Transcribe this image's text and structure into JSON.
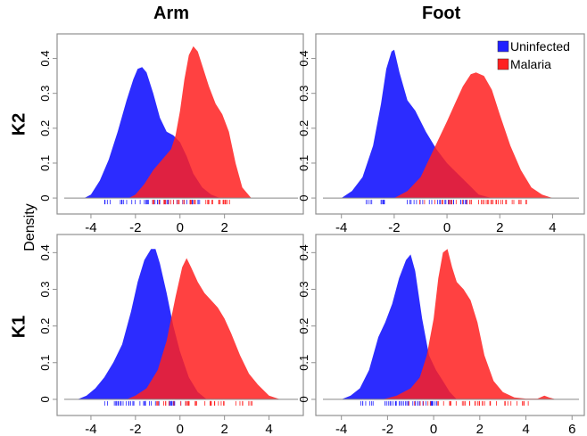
{
  "column_titles": [
    "Arm",
    "Foot"
  ],
  "row_labels": [
    "K2",
    "K1"
  ],
  "y_axis_title": "Density",
  "colors": {
    "uninfected": "#2121ff",
    "malaria": "#ff2020",
    "axis": "#909090"
  },
  "legend": {
    "placement": "top-right of Foot K2 panel",
    "entries": [
      "Uninfected",
      "Malaria"
    ]
  },
  "chart_data": [
    {
      "type": "area",
      "title": "Arm",
      "row": "K2",
      "xlim": [
        -5.2,
        5.3
      ],
      "ylim": [
        -0.01,
        0.45
      ],
      "xticks": [
        -4,
        -2,
        0,
        2
      ],
      "yticks": [
        0,
        0.1,
        0.2,
        0.3,
        0.4
      ],
      "series": [
        {
          "name": "Uninfected",
          "x": [
            -4.3,
            -4.0,
            -3.6,
            -3.2,
            -2.8,
            -2.4,
            -2.1,
            -1.9,
            -1.7,
            -1.5,
            -1.2,
            -0.9,
            -0.6,
            -0.3,
            0.0,
            0.3,
            0.6,
            1.0,
            1.4,
            1.8
          ],
          "y": [
            0.0,
            0.01,
            0.05,
            0.11,
            0.19,
            0.28,
            0.34,
            0.37,
            0.375,
            0.36,
            0.3,
            0.23,
            0.19,
            0.18,
            0.16,
            0.12,
            0.07,
            0.03,
            0.01,
            0.0
          ]
        },
        {
          "name": "Malaria",
          "x": [
            -2.3,
            -2.0,
            -1.6,
            -1.2,
            -0.8,
            -0.4,
            -0.2,
            0.0,
            0.2,
            0.4,
            0.6,
            0.8,
            1.0,
            1.3,
            1.6,
            1.9,
            2.2,
            2.5,
            2.8,
            3.2
          ],
          "y": [
            0.0,
            0.01,
            0.04,
            0.08,
            0.11,
            0.14,
            0.18,
            0.25,
            0.34,
            0.41,
            0.435,
            0.42,
            0.38,
            0.32,
            0.27,
            0.24,
            0.19,
            0.1,
            0.03,
            0.0
          ]
        }
      ]
    },
    {
      "type": "area",
      "title": "Foot",
      "row": "K2",
      "xlim": [
        -4.7,
        5.0
      ],
      "ylim": [
        -0.01,
        0.45
      ],
      "xticks": [
        -4,
        -2,
        0,
        2,
        4
      ],
      "yticks": [
        0,
        0.1,
        0.2,
        0.3,
        0.4
      ],
      "series": [
        {
          "name": "Uninfected",
          "x": [
            -4.0,
            -3.6,
            -3.2,
            -2.8,
            -2.5,
            -2.3,
            -2.1,
            -2.0,
            -1.8,
            -1.5,
            -1.2,
            -0.8,
            -0.4,
            0.0,
            0.4,
            0.8,
            1.2,
            1.7
          ],
          "y": [
            0.0,
            0.02,
            0.06,
            0.15,
            0.27,
            0.37,
            0.42,
            0.425,
            0.36,
            0.28,
            0.25,
            0.19,
            0.14,
            0.1,
            0.07,
            0.04,
            0.01,
            0.0
          ]
        },
        {
          "name": "Malaria",
          "x": [
            -2.0,
            -1.5,
            -1.0,
            -0.5,
            0.0,
            0.3,
            0.6,
            0.9,
            1.1,
            1.4,
            1.7,
            2.0,
            2.4,
            2.8,
            3.2,
            3.6,
            4.0
          ],
          "y": [
            0.0,
            0.02,
            0.06,
            0.14,
            0.22,
            0.27,
            0.32,
            0.355,
            0.36,
            0.35,
            0.31,
            0.24,
            0.15,
            0.08,
            0.03,
            0.01,
            0.0
          ]
        }
      ]
    },
    {
      "type": "area",
      "title": "Arm",
      "row": "K1",
      "xlim": [
        -5.2,
        5.3
      ],
      "ylim": [
        -0.01,
        0.43
      ],
      "xticks": [
        -4,
        -2,
        0,
        2,
        4
      ],
      "yticks": [
        0,
        0.1,
        0.2,
        0.3,
        0.4
      ],
      "series": [
        {
          "name": "Uninfected",
          "x": [
            -4.6,
            -4.2,
            -3.8,
            -3.4,
            -3.0,
            -2.6,
            -2.2,
            -1.9,
            -1.6,
            -1.3,
            -1.1,
            -0.9,
            -0.6,
            -0.3,
            0.0,
            0.4,
            0.8,
            1.2
          ],
          "y": [
            0.0,
            0.01,
            0.03,
            0.06,
            0.1,
            0.15,
            0.24,
            0.32,
            0.38,
            0.41,
            0.41,
            0.37,
            0.29,
            0.2,
            0.13,
            0.06,
            0.02,
            0.0
          ]
        },
        {
          "name": "Malaria",
          "x": [
            -2.4,
            -2.0,
            -1.5,
            -1.0,
            -0.6,
            -0.2,
            0.1,
            0.3,
            0.5,
            0.8,
            1.1,
            1.4,
            1.7,
            2.0,
            2.3,
            2.7,
            3.1,
            3.5,
            4.0,
            4.5
          ],
          "y": [
            0.0,
            0.01,
            0.03,
            0.08,
            0.16,
            0.28,
            0.36,
            0.385,
            0.36,
            0.32,
            0.29,
            0.27,
            0.25,
            0.22,
            0.18,
            0.12,
            0.07,
            0.04,
            0.01,
            0.0
          ]
        }
      ]
    },
    {
      "type": "area",
      "title": "Foot",
      "row": "K1",
      "xlim": [
        -4.8,
        6.3
      ],
      "ylim": [
        -0.01,
        0.43
      ],
      "xticks": [
        -4,
        -2,
        0,
        2,
        4,
        6
      ],
      "yticks": [
        0,
        0.1,
        0.2,
        0.3,
        0.4
      ],
      "series": [
        {
          "name": "Uninfected",
          "x": [
            -4.0,
            -3.6,
            -3.2,
            -2.8,
            -2.4,
            -2.1,
            -1.8,
            -1.5,
            -1.2,
            -1.0,
            -0.8,
            -0.5,
            -0.2,
            0.1,
            0.4,
            0.7,
            1.0
          ],
          "y": [
            0.0,
            0.01,
            0.03,
            0.08,
            0.17,
            0.21,
            0.26,
            0.33,
            0.38,
            0.395,
            0.35,
            0.22,
            0.12,
            0.08,
            0.05,
            0.02,
            0.0
          ]
        },
        {
          "name": "Malaria",
          "x": [
            -2.2,
            -1.6,
            -1.0,
            -0.6,
            -0.3,
            0.0,
            0.2,
            0.4,
            0.6,
            0.8,
            1.0,
            1.3,
            1.6,
            1.9,
            2.2,
            2.6,
            3.0,
            3.5,
            4.0,
            4.5,
            4.8,
            5.0,
            5.3
          ],
          "y": [
            0.0,
            0.01,
            0.03,
            0.06,
            0.12,
            0.22,
            0.33,
            0.4,
            0.41,
            0.36,
            0.32,
            0.3,
            0.27,
            0.21,
            0.12,
            0.05,
            0.02,
            0.005,
            0.002,
            0.002,
            0.01,
            0.005,
            0.0
          ]
        }
      ]
    }
  ]
}
